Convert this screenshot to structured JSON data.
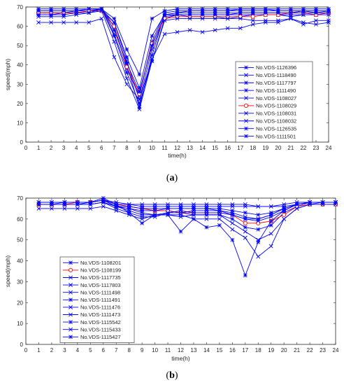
{
  "chart_data": [
    {
      "type": "line",
      "caption": "a",
      "xlabel": "time(h)",
      "ylabel": "speed(mph)",
      "xlim": [
        0,
        24
      ],
      "ylim": [
        0,
        70
      ],
      "xticks": [
        0,
        1,
        2,
        3,
        4,
        5,
        6,
        7,
        8,
        9,
        10,
        11,
        12,
        13,
        14,
        15,
        16,
        17,
        18,
        19,
        20,
        21,
        22,
        23,
        24
      ],
      "yticks": [
        0,
        10,
        20,
        30,
        40,
        50,
        60,
        70
      ],
      "legend": "center-right",
      "x": [
        1,
        2,
        3,
        4,
        5,
        6,
        7,
        8,
        9,
        10,
        11,
        12,
        13,
        14,
        15,
        16,
        17,
        18,
        19,
        20,
        21,
        22,
        23,
        24
      ],
      "series": [
        {
          "name": "No.VDS-1126396",
          "color": "#0000ff",
          "marker": "star",
          "values": [
            69,
            69,
            69,
            69,
            69,
            69,
            60,
            40,
            18,
            45,
            66,
            67,
            68,
            68,
            68,
            68,
            69,
            69,
            69,
            68,
            68,
            68,
            68,
            68
          ]
        },
        {
          "name": "No.VDS-1118490",
          "color": "#0000ff",
          "marker": "x",
          "values": [
            68,
            68,
            68,
            68,
            69,
            69,
            56,
            38,
            24,
            52,
            67,
            68,
            68,
            68,
            68,
            68,
            68,
            68,
            68,
            68,
            68,
            68,
            68,
            68
          ]
        },
        {
          "name": "No.VDS-1117797",
          "color": "#0000ff",
          "marker": "star",
          "values": [
            67,
            67,
            67,
            68,
            68,
            69,
            64,
            48,
            35,
            64,
            68,
            69,
            69,
            69,
            69,
            69,
            69,
            69,
            69,
            69,
            69,
            69,
            69,
            69
          ]
        },
        {
          "name": "No.VDS-1111490",
          "color": "#0000ff",
          "marker": "star",
          "values": [
            66,
            66,
            67,
            67,
            68,
            69,
            55,
            36,
            20,
            42,
            64,
            66,
            66,
            66,
            66,
            66,
            66,
            66,
            66,
            66,
            66,
            66,
            66,
            66
          ]
        },
        {
          "name": "No.VDS-1108027",
          "color": "#0000ff",
          "marker": "x",
          "values": [
            67,
            67,
            67,
            67,
            68,
            68,
            62,
            42,
            22,
            48,
            65,
            66,
            65,
            65,
            65,
            64,
            65,
            66,
            66,
            66,
            65,
            66,
            66,
            67
          ]
        },
        {
          "name": "No.VDS-1108029",
          "color": "#ff0000",
          "marker": "circle",
          "values": [
            67,
            67,
            67,
            67,
            68,
            68,
            60,
            39,
            25,
            51,
            64,
            65,
            65,
            65,
            65,
            65,
            65,
            65,
            66,
            66,
            67,
            67,
            66,
            67
          ]
        },
        {
          "name": "No.VDS-1108031",
          "color": "#0000ff",
          "marker": "x",
          "values": [
            65,
            65,
            65,
            66,
            67,
            68,
            52,
            33,
            17,
            42,
            63,
            64,
            64,
            64,
            64,
            64,
            64,
            63,
            63,
            63,
            64,
            62,
            61,
            62
          ]
        },
        {
          "name": "No.VDS-1108032",
          "color": "#0000ff",
          "marker": "x",
          "values": [
            62,
            62,
            62,
            62,
            62,
            64,
            44,
            30,
            22,
            43,
            56,
            57,
            58,
            57,
            58,
            59,
            59,
            61,
            62,
            62,
            64,
            61,
            63,
            63
          ]
        },
        {
          "name": "No.VDS-1126535",
          "color": "#0000ff",
          "marker": "star",
          "values": [
            68,
            68,
            68,
            68,
            69,
            69,
            58,
            41,
            26,
            50,
            66,
            67,
            67,
            67,
            67,
            67,
            67,
            67,
            67,
            67,
            67,
            68,
            67,
            68
          ]
        },
        {
          "name": "No.VDS-1111501",
          "color": "#0000ff",
          "marker": "star",
          "values": [
            66,
            66,
            66,
            67,
            67,
            69,
            62,
            44,
            28,
            55,
            66,
            66,
            66,
            66,
            66,
            66,
            67,
            67,
            67,
            67,
            67,
            67,
            67,
            67
          ]
        }
      ]
    },
    {
      "type": "line",
      "caption": "b",
      "xlabel": "time(h)",
      "ylabel": "speed(mph)",
      "xlim": [
        0,
        24
      ],
      "ylim": [
        0,
        70
      ],
      "xticks": [
        0,
        1,
        2,
        3,
        4,
        5,
        6,
        7,
        8,
        9,
        10,
        11,
        12,
        13,
        14,
        15,
        16,
        17,
        18,
        19,
        20,
        21,
        22,
        23,
        24
      ],
      "yticks": [
        0,
        10,
        20,
        30,
        40,
        50,
        60,
        70
      ],
      "legend": "center-left",
      "x": [
        1,
        2,
        3,
        4,
        5,
        6,
        7,
        8,
        9,
        10,
        11,
        12,
        13,
        14,
        15,
        16,
        17,
        18,
        19,
        20,
        21,
        22,
        23,
        24
      ],
      "series": [
        {
          "name": "No.VDS-1108201",
          "color": "#0000ff",
          "marker": "star",
          "values": [
            68,
            68,
            68,
            68,
            68,
            69,
            67,
            66,
            65,
            64,
            64,
            63,
            62,
            62,
            62,
            60,
            56,
            55,
            57,
            63,
            66,
            68,
            68,
            68
          ]
        },
        {
          "name": "No.VDS-1108199",
          "color": "#ff0000",
          "marker": "circle",
          "values": [
            67,
            67,
            67,
            68,
            68,
            69,
            67,
            66,
            65,
            64,
            64,
            63,
            63,
            63,
            63,
            62,
            58,
            58,
            59,
            62,
            66,
            67,
            67,
            67
          ]
        },
        {
          "name": "No.VDS-1117735",
          "color": "#0000ff",
          "marker": "x",
          "values": [
            67,
            67,
            67,
            67,
            68,
            69,
            66,
            64,
            62,
            62,
            63,
            63,
            64,
            64,
            64,
            63,
            61,
            60,
            62,
            65,
            67,
            68,
            68,
            68
          ]
        },
        {
          "name": "No.VDS-1117803",
          "color": "#0000ff",
          "marker": "x",
          "values": [
            67,
            67,
            67,
            67,
            68,
            69,
            66,
            65,
            63,
            62,
            62,
            61,
            62,
            62,
            62,
            58,
            54,
            50,
            53,
            60,
            65,
            67,
            68,
            68
          ]
        },
        {
          "name": "No.VDS-1111498",
          "color": "#0000ff",
          "marker": "x",
          "values": [
            67,
            67,
            67,
            67,
            67,
            68,
            65,
            63,
            61,
            61,
            63,
            64,
            63,
            63,
            63,
            62,
            60,
            59,
            61,
            64,
            67,
            68,
            68,
            68
          ]
        },
        {
          "name": "No.VDS-1111491",
          "color": "#0000ff",
          "marker": "star",
          "values": [
            67,
            67,
            67,
            67,
            67,
            68,
            66,
            65,
            64,
            64,
            65,
            65,
            65,
            65,
            65,
            64,
            63,
            62,
            63,
            65,
            67,
            68,
            68,
            68
          ]
        },
        {
          "name": "No.VDS-1111476",
          "color": "#0000ff",
          "marker": "x",
          "values": [
            68,
            68,
            68,
            68,
            68,
            69,
            67,
            67,
            66,
            66,
            66,
            66,
            66,
            66,
            66,
            66,
            66,
            66,
            66,
            66,
            67,
            68,
            68,
            68
          ]
        },
        {
          "name": "No.VDS-1111473",
          "color": "#0000ff",
          "marker": "x",
          "values": [
            68,
            68,
            68,
            68,
            68,
            69,
            68,
            67,
            67,
            67,
            67,
            67,
            67,
            67,
            67,
            67,
            67,
            66,
            66,
            67,
            68,
            68,
            68,
            68
          ]
        },
        {
          "name": "No.VDS-1115542",
          "color": "#0000ff",
          "marker": "star",
          "values": [
            67,
            67,
            68,
            68,
            68,
            70,
            67,
            63,
            58,
            62,
            62,
            54,
            60,
            56,
            57,
            50,
            33,
            49,
            59,
            64,
            67,
            68,
            68,
            68
          ]
        },
        {
          "name": "No.VDS-1115433",
          "color": "#0000ff",
          "marker": "x",
          "values": [
            65,
            65,
            65,
            65,
            65,
            66,
            64,
            62,
            60,
            62,
            62,
            62,
            60,
            60,
            60,
            55,
            51,
            42,
            47,
            60,
            65,
            67,
            67,
            67
          ]
        },
        {
          "name": "No.VDS-1115427",
          "color": "#0000ff",
          "marker": "star",
          "values": [
            67,
            67,
            67,
            67,
            67,
            68,
            66,
            66,
            65,
            65,
            65,
            65,
            65,
            65,
            64,
            62,
            60,
            60,
            62,
            65,
            67,
            68,
            68,
            68
          ]
        }
      ]
    }
  ]
}
